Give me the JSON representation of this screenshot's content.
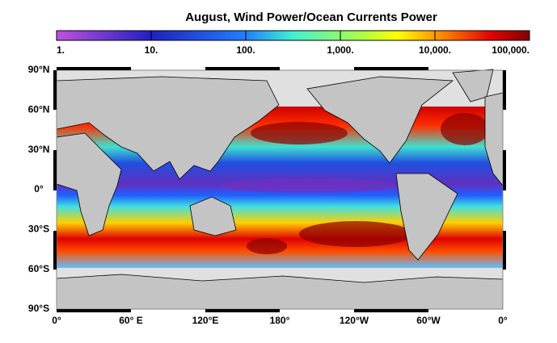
{
  "chart_data": {
    "type": "heatmap-map",
    "title": "August, Wind Power/Ocean Currents Power",
    "colorbar": {
      "scale": "log",
      "lim": [
        1,
        100000
      ],
      "ticks": [
        {
          "value": 1,
          "label": "1."
        },
        {
          "value": 10,
          "label": "10."
        },
        {
          "value": 100,
          "label": "100."
        },
        {
          "value": 1000,
          "label": "1,000."
        },
        {
          "value": 10000,
          "label": "10,000."
        },
        {
          "value": 100000,
          "label": "100,000."
        }
      ]
    },
    "lat_labels": [
      "90°N",
      "60°N",
      "30°N",
      "0°",
      "30°S",
      "60°S",
      "90°S"
    ],
    "lon_labels": [
      "0°",
      "60° E",
      "120°E",
      "180°",
      "120°W",
      "60°W",
      "0°"
    ]
  }
}
